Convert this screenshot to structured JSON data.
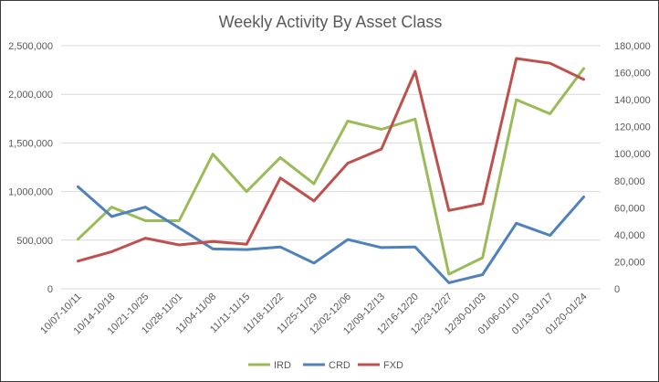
{
  "chart_data": {
    "type": "line",
    "title": "Weekly Activity By Asset Class",
    "categories": [
      "10/07-10/11",
      "10/14-10/18",
      "10/21-10/25",
      "10/28-11/01",
      "11/04-11/08",
      "11/11-11/15",
      "11/18-11/22",
      "11/25-11/29",
      "12/02-12/06",
      "12/09-12/13",
      "12/16-12/20",
      "12/23-12/27",
      "12/30-01/03",
      "01/06-01/10",
      "01/13-01/17",
      "01/20-01/24"
    ],
    "y_left": {
      "min": 0,
      "max": 2500000,
      "ticks": [
        "0",
        "500,000",
        "1,000,000",
        "1,500,000",
        "2,000,000",
        "2,500,000"
      ]
    },
    "y_right": {
      "min": 0,
      "max": 180000,
      "ticks": [
        "0",
        "20,000",
        "40,000",
        "60,000",
        "80,000",
        "100,000",
        "120,000",
        "140,000",
        "160,000",
        "180,000"
      ]
    },
    "grid": "horizontal",
    "legend_position": "bottom",
    "series": [
      {
        "name": "IRD",
        "axis": "left",
        "color": "#9BBB59",
        "values": [
          510000,
          840000,
          700000,
          700000,
          1385000,
          1000000,
          1350000,
          1080000,
          1725000,
          1640000,
          1745000,
          150000,
          320000,
          1945000,
          1800000,
          2265000
        ]
      },
      {
        "name": "CRD",
        "axis": "right",
        "color": "#4F81BD",
        "values": [
          75500,
          53500,
          60500,
          45000,
          29500,
          29000,
          31000,
          19000,
          36500,
          30500,
          31000,
          4500,
          10500,
          48500,
          39500,
          68000
        ]
      },
      {
        "name": "FXD",
        "axis": "right",
        "color": "#C0504D",
        "values": [
          20500,
          27500,
          37500,
          32500,
          35000,
          33000,
          82000,
          65000,
          93000,
          103500,
          161000,
          58000,
          63000,
          170500,
          167000,
          155000
        ]
      }
    ]
  }
}
